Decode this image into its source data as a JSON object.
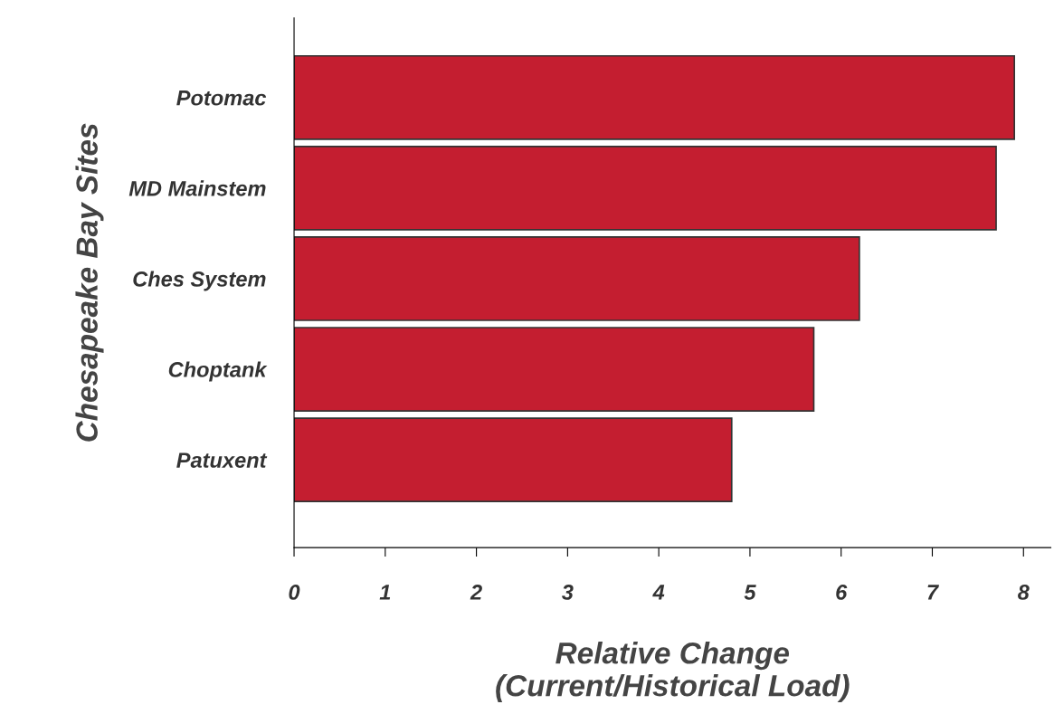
{
  "chart_data": {
    "type": "bar",
    "orientation": "horizontal",
    "ylabel": "Chesapeake Bay Sites",
    "xlabel": "Relative Change\n(Current/Historical Load)",
    "categories": [
      "Potomac",
      "MD Mainstem",
      "Ches System",
      "Choptank",
      "Patuxent"
    ],
    "values": [
      7.9,
      7.7,
      6.2,
      5.7,
      4.8
    ],
    "color": "#c41e30",
    "xlim": [
      0,
      8.3
    ],
    "xticks": [
      0,
      1,
      2,
      3,
      4,
      5,
      6,
      7,
      8
    ],
    "grid": false,
    "legend": false
  }
}
